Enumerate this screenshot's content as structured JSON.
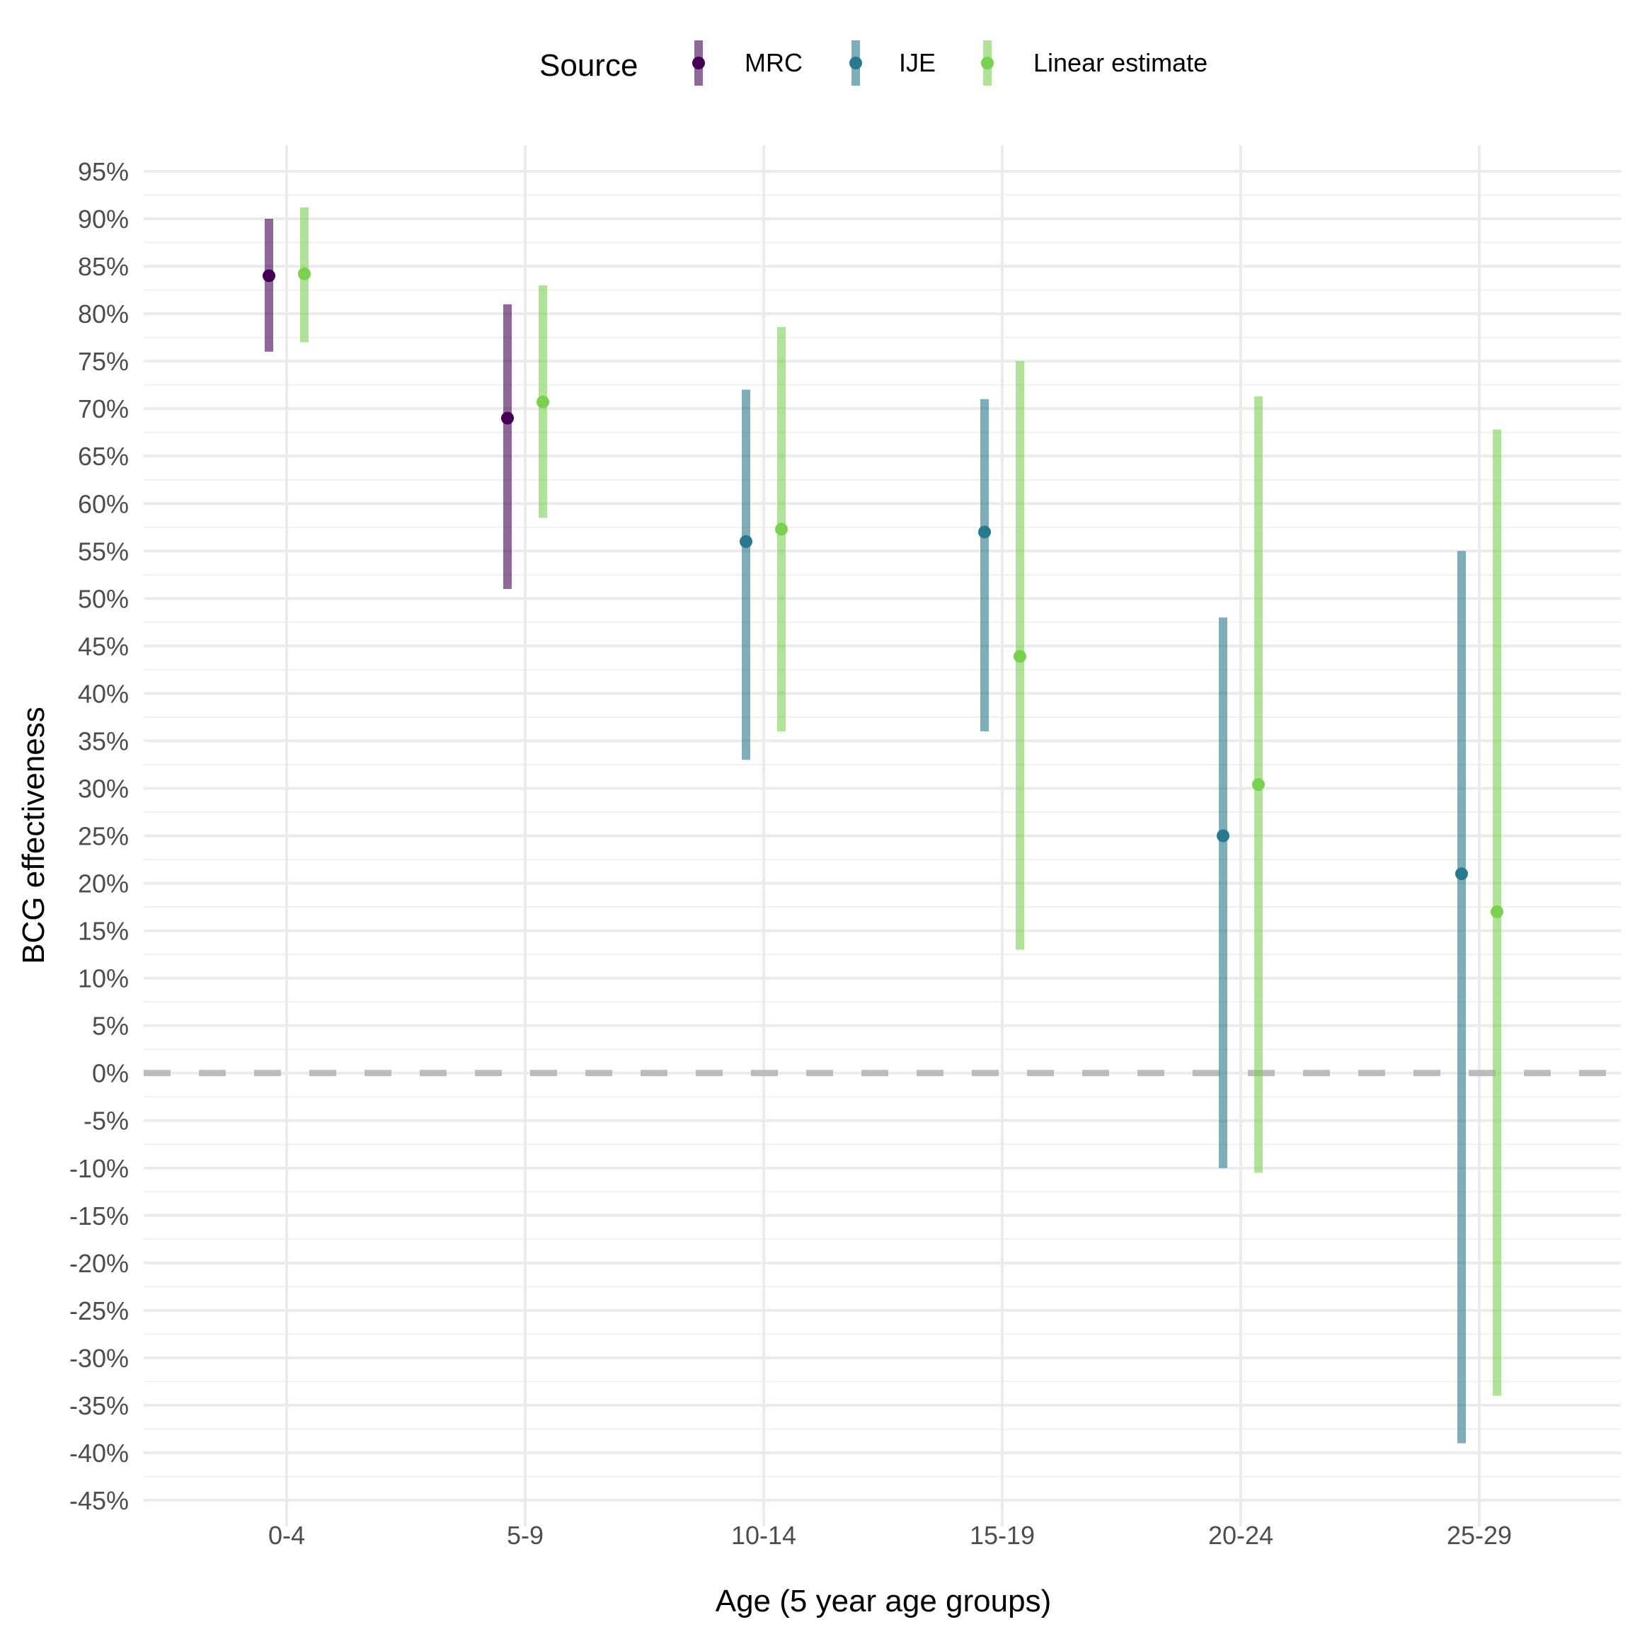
{
  "chart_data": {
    "type": "scatter",
    "subtype": "point-range",
    "xlabel": "Age (5 year age groups)",
    "ylabel": "BCG effectiveness",
    "categories": [
      "0-4",
      "5-9",
      "10-14",
      "15-19",
      "20-24",
      "25-29"
    ],
    "ylim": [
      -45,
      95
    ],
    "y_ticks": [
      -45,
      -40,
      -35,
      -30,
      -25,
      -20,
      -15,
      -10,
      -5,
      0,
      5,
      10,
      15,
      20,
      25,
      30,
      35,
      40,
      45,
      50,
      55,
      60,
      65,
      70,
      75,
      80,
      85,
      90,
      95
    ],
    "y_tick_labels": [
      "-45%",
      "-40%",
      "-35%",
      "-30%",
      "-25%",
      "-20%",
      "-15%",
      "-10%",
      "-5%",
      "0%",
      "5%",
      "10%",
      "15%",
      "20%",
      "25%",
      "30%",
      "35%",
      "40%",
      "45%",
      "50%",
      "55%",
      "60%",
      "65%",
      "70%",
      "75%",
      "80%",
      "85%",
      "90%",
      "95%"
    ],
    "y_format": "percent",
    "grid": true,
    "reference_line": {
      "y": 0,
      "style": "dashed",
      "color": "#b3b3b3"
    },
    "legend": {
      "title": "Source",
      "position": "top"
    },
    "series": [
      {
        "name": "MRC",
        "color": "#440154",
        "points": [
          {
            "category": "0-4",
            "estimate": 84,
            "lower": 76,
            "upper": 90
          },
          {
            "category": "5-9",
            "estimate": 69,
            "lower": 51,
            "upper": 81
          }
        ]
      },
      {
        "name": "IJE",
        "color": "#2a788e",
        "points": [
          {
            "category": "10-14",
            "estimate": 56,
            "lower": 33,
            "upper": 72
          },
          {
            "category": "15-19",
            "estimate": 57,
            "lower": 36,
            "upper": 71
          },
          {
            "category": "20-24",
            "estimate": 25,
            "lower": -10,
            "upper": 48
          },
          {
            "category": "25-29",
            "estimate": 21,
            "lower": -39,
            "upper": 55
          }
        ]
      },
      {
        "name": "Linear estimate",
        "color": "#7ad151",
        "points": [
          {
            "category": "0-4",
            "estimate": 84.2,
            "lower": 77,
            "upper": 91.2
          },
          {
            "category": "5-9",
            "estimate": 70.7,
            "lower": 58.5,
            "upper": 83
          },
          {
            "category": "10-14",
            "estimate": 57.3,
            "lower": 36,
            "upper": 78.6
          },
          {
            "category": "15-19",
            "estimate": 43.9,
            "lower": 13,
            "upper": 75
          },
          {
            "category": "20-24",
            "estimate": 30.4,
            "lower": -10.5,
            "upper": 71.3
          },
          {
            "category": "25-29",
            "estimate": 17,
            "lower": -34,
            "upper": 67.8
          }
        ]
      }
    ]
  }
}
